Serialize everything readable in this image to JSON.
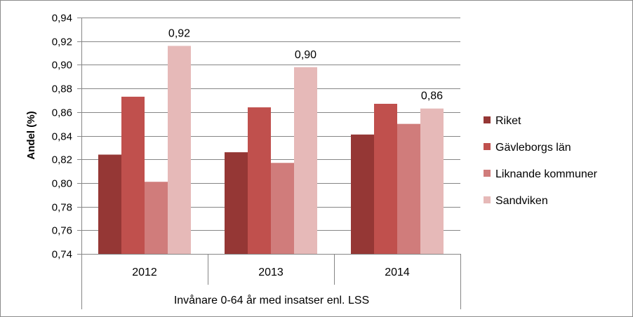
{
  "chart_data": {
    "type": "bar",
    "ylabel": "Andel (%)",
    "xlabel": "Invånare 0-64 år med insatser enl. LSS",
    "categories": [
      "2012",
      "2013",
      "2014"
    ],
    "ylim": [
      0.74,
      0.94
    ],
    "ystep": 0.02,
    "yticks": [
      "0,74",
      "0,76",
      "0,78",
      "0,80",
      "0,82",
      "0,84",
      "0,86",
      "0,88",
      "0,90",
      "0,92",
      "0,94"
    ],
    "grid": true,
    "legend_position": "right",
    "series": [
      {
        "name": "Riket",
        "values": [
          0.824,
          0.826,
          0.841
        ],
        "color": "#953735"
      },
      {
        "name": "Gävleborgs län",
        "values": [
          0.873,
          0.864,
          0.867
        ],
        "color": "#c0504d"
      },
      {
        "name": "Liknande kommuner",
        "values": [
          0.801,
          0.817,
          0.85
        ],
        "color": "#d07c7b"
      },
      {
        "name": "Sandviken",
        "values": [
          0.916,
          0.898,
          0.863
        ],
        "color": "#e6b9b8"
      }
    ],
    "data_labels": {
      "series": "Sandviken",
      "texts": [
        "0,92",
        "0,90",
        "0,86"
      ]
    }
  }
}
